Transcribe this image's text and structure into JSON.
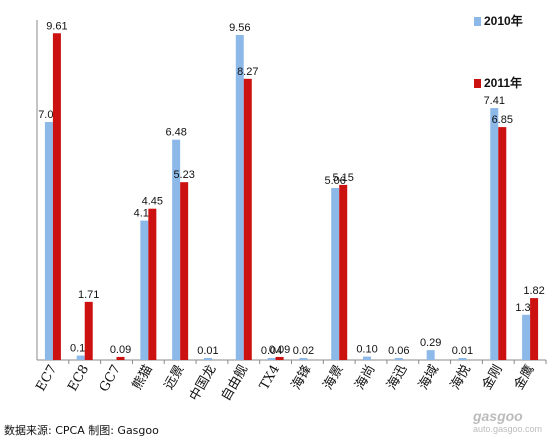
{
  "chart_data": {
    "type": "bar",
    "categories": [
      "EC7",
      "EC8",
      "GC7",
      "熊猫",
      "远景",
      "中国龙",
      "自由舰",
      "TX4",
      "海锋",
      "海景",
      "海尚",
      "海迅",
      "海域",
      "海悦",
      "金刚",
      "金鹰"
    ],
    "series": [
      {
        "name": "2010年",
        "color": "#8db9e8",
        "values": [
          7.0,
          0.13,
          null,
          4.1,
          6.48,
          0.01,
          9.56,
          0.04,
          0.02,
          5.06,
          0.1,
          0.06,
          0.29,
          0.01,
          7.41,
          1.33
        ]
      },
      {
        "name": "2011年",
        "color": "#cc1111",
        "values": [
          9.61,
          1.71,
          0.09,
          4.45,
          5.23,
          null,
          8.27,
          0.09,
          null,
          5.15,
          null,
          null,
          null,
          null,
          6.85,
          1.82
        ]
      }
    ],
    "labels": [
      [
        "7.00",
        "0.13",
        "",
        "4.10",
        "6.48",
        "0.01",
        "9.56",
        "0.04",
        "0.02",
        "5.06",
        "0.10",
        "0.06",
        "0.29",
        "0.01",
        "7.41",
        "1.33"
      ],
      [
        "9.61",
        "1.71",
        "0.09",
        "4.45",
        "5.23",
        "",
        "8.27",
        "0.09",
        "",
        "5.15",
        "",
        "",
        "",
        "",
        "6.85",
        "1.82"
      ]
    ],
    "ylim": [
      0,
      10
    ],
    "grid": false,
    "legend_position": "top-right"
  },
  "source_text": "数据来源: CPCA 制图: Gasgoo",
  "watermark": {
    "name": "gasgoo",
    "url": "auto.gasgoo.com"
  }
}
